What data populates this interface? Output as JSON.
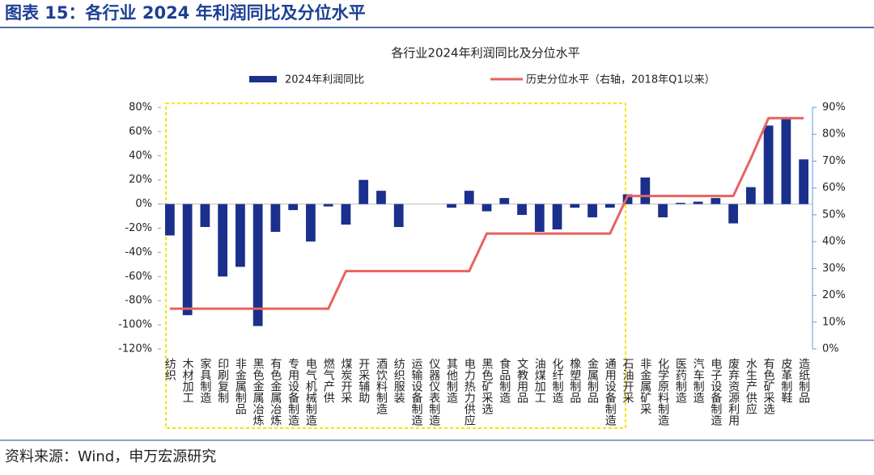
{
  "header": {
    "title": "图表 15：各行业 2024 年利润同比及分位水平"
  },
  "footer": {
    "source": "资料来源：Wind，申万宏源研究"
  },
  "chart_data": {
    "type": "bar-line",
    "title": "各行业2024年利润同比及分位水平",
    "categories": [
      "纺织",
      "木材加工",
      "家具制造",
      "印刷复制",
      "非金属制品",
      "黑色金属冶炼",
      "有色金属冶炼",
      "专用设备制造",
      "电气机械制造",
      "燃气产供",
      "煤炭开采",
      "开采辅助",
      "酒饮料制造",
      "纺织服装",
      "运输设备制造",
      "仪器仪表制造",
      "其他制造",
      "电力热力供应",
      "黑色矿采选",
      "食品制造",
      "文教用品",
      "油煤加工",
      "化纤制造",
      "橡塑制品",
      "金属制品",
      "通用设备制造",
      "石油开采",
      "非金属矿采",
      "化学原料制造",
      "医药制造",
      "汽车制造",
      "电子设备制造",
      "废弃资源利用",
      "水生产供应",
      "有色矿采选",
      "皮革制鞋",
      "造纸制品"
    ],
    "series": [
      {
        "name": "2024年利润同比",
        "color": "#1b2f8c",
        "kind": "bar",
        "axis": "y",
        "values": [
          -26,
          -92,
          -19,
          -60,
          -52,
          -101,
          -23,
          -5,
          -31,
          -2,
          -17,
          20,
          11,
          -19,
          0,
          0,
          -3,
          11,
          -6,
          5,
          -9,
          -23,
          -21,
          -3,
          -11,
          -3,
          8,
          22,
          -11,
          1,
          2,
          5,
          -16,
          14,
          65,
          71,
          37
        ]
      },
      {
        "name": "历史分位水平（右轴，2018年Q1以来）",
        "color": "#e8625f",
        "kind": "line",
        "axis": "y2",
        "values": [
          15,
          15,
          15,
          15,
          15,
          15,
          15,
          15,
          15,
          15,
          29,
          29,
          29,
          29,
          29,
          29,
          29,
          29,
          43,
          43,
          43,
          43,
          43,
          43,
          43,
          43,
          57,
          57,
          57,
          57,
          57,
          57,
          57,
          71,
          86,
          86,
          86
        ]
      }
    ],
    "ylim": [
      -120,
      80
    ],
    "yticks": [
      {
        "value": -120,
        "label": "-120%"
      },
      {
        "value": -100,
        "label": "-100%"
      },
      {
        "value": -80,
        "label": "-80%"
      },
      {
        "value": -60,
        "label": "-60%"
      },
      {
        "value": -40,
        "label": "-40%"
      },
      {
        "value": -20,
        "label": "-20%"
      },
      {
        "value": 0,
        "label": "0%"
      },
      {
        "value": 20,
        "label": "20%"
      },
      {
        "value": 40,
        "label": "40%"
      },
      {
        "value": 60,
        "label": "60%"
      },
      {
        "value": 80,
        "label": "80%"
      }
    ],
    "y2lim": [
      0,
      90
    ],
    "y2ticks": [
      {
        "value": 0,
        "label": "0%"
      },
      {
        "value": 10,
        "label": "10%"
      },
      {
        "value": 20,
        "label": "20%"
      },
      {
        "value": 30,
        "label": "30%"
      },
      {
        "value": 40,
        "label": "40%"
      },
      {
        "value": 50,
        "label": "50%"
      },
      {
        "value": 60,
        "label": "60%"
      },
      {
        "value": 70,
        "label": "70%"
      },
      {
        "value": 80,
        "label": "80%"
      },
      {
        "value": 90,
        "label": "90%"
      }
    ]
  }
}
